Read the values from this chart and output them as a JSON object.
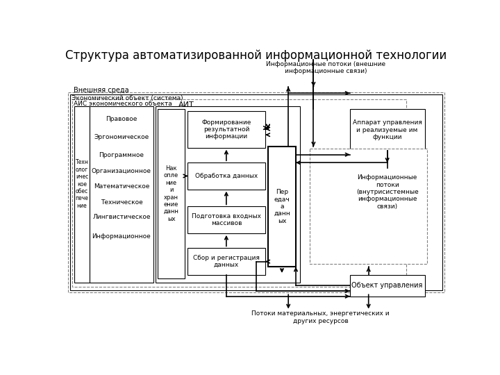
{
  "title": "Структура автоматизированной информационной технологии",
  "labels": {
    "info_flows_external": "Информационные потоки (внешние\nинформационные связи)",
    "external_env": "Внешняя среда",
    "economic_obj": "Экономический объект (система)",
    "ais_obj": "АИС экономического объекта",
    "ait_label": "АИТ",
    "tech_support_label": "Техн\nолог\nичес\nкое\nобес\nпече\nние",
    "pravovoe": "Правовое",
    "ergonomicheskoe": "Эргономическое",
    "programmnoe": "Программное",
    "organizatsionnoe": "Организационное",
    "matematicheskoe": "Математическое",
    "tekhnicheskoe": "Техническое",
    "lingvisticheskoe": "Лингвистическое",
    "informatsionnoe": "Информационное",
    "nakoplenie": "Нак\nопле\nние\nи\nхран\nение\nданн\nых",
    "formirovanie": "Формирование\nрезультатной\nинформации",
    "obrabotka": "Обработка данных",
    "podgotovka": "Подготовка входных\nмассивов",
    "sbor": "Сбор и регистрация\nданных",
    "peredacha": "Пер\nедач\nа\nданн\nых",
    "apparat": "Аппарат управления\nи реализуемые им\nфункции",
    "info_flows_internal": "Информационные\nпотоки\n(внутрисистемные\nинформационные\nсвязи)",
    "ob_upravleniya": "Объект управления",
    "potoki": "Потоки материальных, энергетических и\nдругих ресурсов"
  }
}
